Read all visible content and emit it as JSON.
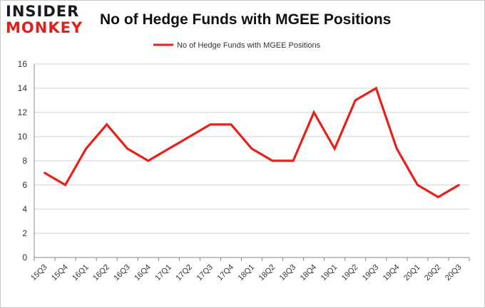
{
  "brand": {
    "line1": "INSIDER",
    "line2": "MONKEY"
  },
  "chart_data": {
    "type": "line",
    "title": "No of Hedge Funds with MGEE Positions",
    "categories": [
      "15Q3",
      "15Q4",
      "16Q1",
      "16Q2",
      "16Q3",
      "16Q4",
      "17Q1",
      "17Q2",
      "17Q3",
      "17Q4",
      "18Q1",
      "18Q2",
      "18Q3",
      "18Q4",
      "19Q1",
      "19Q2",
      "19Q3",
      "19Q4",
      "20Q1",
      "20Q2",
      "20Q3"
    ],
    "series": [
      {
        "name": "No of Hedge Funds with MGEE  Positions",
        "color": "#e8201b",
        "values": [
          7,
          6,
          9,
          11,
          9,
          8,
          9,
          10,
          11,
          11,
          9,
          8,
          8,
          12,
          9,
          13,
          14,
          9,
          6,
          5,
          6
        ]
      }
    ],
    "yticks": [
      0,
      2,
      4,
      6,
      8,
      10,
      12,
      14,
      16
    ],
    "ylim": [
      0,
      16
    ],
    "grid": true,
    "legend_position": "top-center"
  }
}
